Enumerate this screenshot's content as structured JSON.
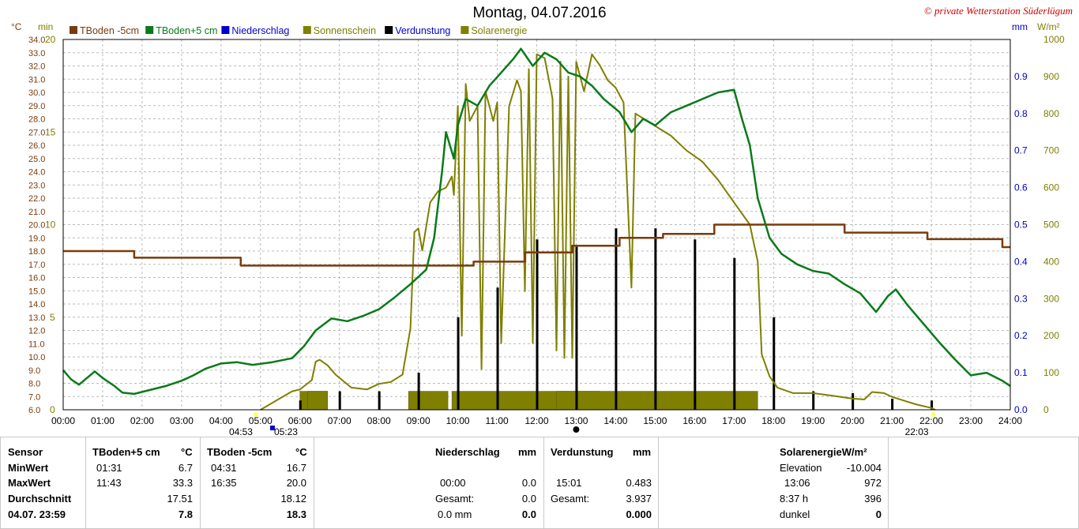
{
  "title": "Montag, 04.07.2016",
  "copyright": "© private Wetterstation Süderlügum",
  "legend": [
    {
      "label": "TBoden -5cm",
      "color": "#7a3b0c"
    },
    {
      "label": "TBoden+5 cm",
      "color": "#0a7a1a"
    },
    {
      "label": "Niederschlag",
      "color": "#0000cc"
    },
    {
      "label": "Sonnenschein",
      "color": "#7f7f00"
    },
    {
      "label": "Verdunstung",
      "color": "#000000"
    },
    {
      "label": "Solarenergie",
      "color": "#7f7f00"
    }
  ],
  "axis_units": {
    "temp": "°C",
    "min": "min",
    "mm": "mm",
    "wm2": "W/m²"
  },
  "axis_ticks": {
    "temp": [
      "6.0",
      "7.0",
      "8.0",
      "9.0",
      "10.0",
      "11.0",
      "12.0",
      "13.0",
      "14.0",
      "15.0",
      "16.0",
      "17.0",
      "18.0",
      "19.0",
      "20.0",
      "21.0",
      "22.0",
      "23.0",
      "24.0",
      "25.0",
      "26.0",
      "27.0",
      "28.0",
      "29.0",
      "30.0",
      "31.0",
      "32.0",
      "33.0",
      "34.0"
    ],
    "min": [
      "0",
      "5",
      "10",
      "15",
      "20"
    ],
    "mm": [
      "0.0",
      "0.1",
      "0.2",
      "0.3",
      "0.4",
      "0.5",
      "0.6",
      "0.7",
      "0.8",
      "0.9"
    ],
    "wm2": [
      "0",
      "100",
      "200",
      "300",
      "400",
      "500",
      "600",
      "700",
      "800",
      "900",
      "1000"
    ],
    "time": [
      "00:00",
      "01:00",
      "02:00",
      "03:00",
      "04:00",
      "05:00",
      "06:00",
      "07:00",
      "08:00",
      "09:00",
      "10:00",
      "11:00",
      "12:00",
      "13:00",
      "14:00",
      "15:00",
      "16:00",
      "17:00",
      "18:00",
      "19:00",
      "20:00",
      "21:00",
      "22:00",
      "23:00",
      "24:00"
    ]
  },
  "sun_events": {
    "dawn": "04:53",
    "sunrise": "05:23",
    "sunset": "22:03"
  },
  "colors": {
    "tboden_minus5": "#7a3b0c",
    "tboden_plus5": "#0a7a1a",
    "sun": "#7f7f00",
    "evap": "#000000",
    "grid": "#bbbbbb"
  },
  "chart_data": {
    "type": "line",
    "title": "Montag, 04.07.2016",
    "x_unit": "hour",
    "xlim": [
      0,
      24
    ],
    "ylim_temp": [
      6,
      34
    ],
    "ylim_sun_min": [
      0,
      20
    ],
    "ylim_mm": [
      0,
      1.0
    ],
    "ylim_wm2": [
      0,
      1000
    ],
    "grid": true,
    "legend_position": "top",
    "series": [
      {
        "name": "TBoden -5cm",
        "axis": "temp",
        "points": [
          [
            0,
            18.0
          ],
          [
            1.8,
            18.0
          ],
          [
            1.8,
            17.5
          ],
          [
            4.5,
            17.5
          ],
          [
            4.5,
            16.9
          ],
          [
            10.4,
            16.9
          ],
          [
            10.4,
            17.2
          ],
          [
            11.7,
            17.2
          ],
          [
            11.7,
            17.9
          ],
          [
            12.9,
            17.9
          ],
          [
            12.9,
            18.4
          ],
          [
            14.1,
            18.4
          ],
          [
            14.1,
            19.0
          ],
          [
            15.2,
            19.0
          ],
          [
            15.2,
            19.3
          ],
          [
            16.5,
            19.3
          ],
          [
            16.5,
            20.0
          ],
          [
            19.8,
            20.0
          ],
          [
            19.8,
            19.4
          ],
          [
            21.9,
            19.4
          ],
          [
            21.9,
            18.9
          ],
          [
            23.8,
            18.9
          ],
          [
            23.8,
            18.3
          ],
          [
            24,
            18.3
          ]
        ]
      },
      {
        "name": "TBoden+5 cm",
        "axis": "temp",
        "points": [
          [
            0,
            9.0
          ],
          [
            0.2,
            8.3
          ],
          [
            0.4,
            7.9
          ],
          [
            0.6,
            8.4
          ],
          [
            0.8,
            8.9
          ],
          [
            1.0,
            8.4
          ],
          [
            1.3,
            7.8
          ],
          [
            1.5,
            7.3
          ],
          [
            1.8,
            7.2
          ],
          [
            2.2,
            7.5
          ],
          [
            2.6,
            7.8
          ],
          [
            3.0,
            8.2
          ],
          [
            3.3,
            8.6
          ],
          [
            3.6,
            9.1
          ],
          [
            4.0,
            9.5
          ],
          [
            4.4,
            9.6
          ],
          [
            4.8,
            9.4
          ],
          [
            5.3,
            9.6
          ],
          [
            5.8,
            9.9
          ],
          [
            6.1,
            10.8
          ],
          [
            6.4,
            12.0
          ],
          [
            6.8,
            12.9
          ],
          [
            7.2,
            12.7
          ],
          [
            7.6,
            13.1
          ],
          [
            8.0,
            13.6
          ],
          [
            8.4,
            14.5
          ],
          [
            8.8,
            15.5
          ],
          [
            9.2,
            16.6
          ],
          [
            9.4,
            19.0
          ],
          [
            9.6,
            24.0
          ],
          [
            9.7,
            27.0
          ],
          [
            9.9,
            25.0
          ],
          [
            10.0,
            27.5
          ],
          [
            10.2,
            29.5
          ],
          [
            10.5,
            29.0
          ],
          [
            10.8,
            30.5
          ],
          [
            11.1,
            31.5
          ],
          [
            11.4,
            32.5
          ],
          [
            11.6,
            33.3
          ],
          [
            11.9,
            32.0
          ],
          [
            12.2,
            33.0
          ],
          [
            12.5,
            32.5
          ],
          [
            12.8,
            31.5
          ],
          [
            13.1,
            31.2
          ],
          [
            13.4,
            30.5
          ],
          [
            13.7,
            29.5
          ],
          [
            14.1,
            28.5
          ],
          [
            14.4,
            27.0
          ],
          [
            14.7,
            28.0
          ],
          [
            15.0,
            27.5
          ],
          [
            15.4,
            28.5
          ],
          [
            15.8,
            29.0
          ],
          [
            16.2,
            29.5
          ],
          [
            16.6,
            30.0
          ],
          [
            17.0,
            30.2
          ],
          [
            17.2,
            28.0
          ],
          [
            17.4,
            26.0
          ],
          [
            17.6,
            22.0
          ],
          [
            17.9,
            19.0
          ],
          [
            18.2,
            17.8
          ],
          [
            18.6,
            17.0
          ],
          [
            19.0,
            16.5
          ],
          [
            19.4,
            16.3
          ],
          [
            19.8,
            15.5
          ],
          [
            20.2,
            14.8
          ],
          [
            20.6,
            13.4
          ],
          [
            20.9,
            14.6
          ],
          [
            21.1,
            15.1
          ],
          [
            21.4,
            13.9
          ],
          [
            21.8,
            12.5
          ],
          [
            22.2,
            11.1
          ],
          [
            22.6,
            9.8
          ],
          [
            23.0,
            8.6
          ],
          [
            23.4,
            8.8
          ],
          [
            23.8,
            8.2
          ],
          [
            24,
            7.8
          ]
        ]
      },
      {
        "name": "Solarenergie",
        "axis": "wm2",
        "points": [
          [
            5.0,
            0
          ],
          [
            5.4,
            25
          ],
          [
            5.8,
            50
          ],
          [
            6.0,
            55
          ],
          [
            6.3,
            80
          ],
          [
            6.4,
            130
          ],
          [
            6.5,
            135
          ],
          [
            6.7,
            120
          ],
          [
            6.9,
            95
          ],
          [
            7.3,
            60
          ],
          [
            7.7,
            55
          ],
          [
            8.0,
            70
          ],
          [
            8.3,
            75
          ],
          [
            8.6,
            95
          ],
          [
            8.8,
            220
          ],
          [
            8.9,
            480
          ],
          [
            9.0,
            490
          ],
          [
            9.1,
            430
          ],
          [
            9.3,
            560
          ],
          [
            9.5,
            590
          ],
          [
            9.7,
            600
          ],
          [
            9.85,
            630
          ],
          [
            9.9,
            580
          ],
          [
            10.0,
            820
          ],
          [
            10.1,
            200
          ],
          [
            10.2,
            880
          ],
          [
            10.3,
            780
          ],
          [
            10.5,
            820
          ],
          [
            10.6,
            110
          ],
          [
            10.7,
            860
          ],
          [
            10.9,
            780
          ],
          [
            11.0,
            830
          ],
          [
            11.1,
            180
          ],
          [
            11.3,
            820
          ],
          [
            11.5,
            890
          ],
          [
            11.6,
            860
          ],
          [
            11.7,
            320
          ],
          [
            11.8,
            920
          ],
          [
            11.9,
            180
          ],
          [
            12.0,
            960
          ],
          [
            12.2,
            950
          ],
          [
            12.4,
            840
          ],
          [
            12.5,
            160
          ],
          [
            12.6,
            940
          ],
          [
            12.7,
            140
          ],
          [
            12.8,
            900
          ],
          [
            12.9,
            140
          ],
          [
            13.0,
            940
          ],
          [
            13.2,
            860
          ],
          [
            13.4,
            960
          ],
          [
            13.6,
            930
          ],
          [
            13.8,
            890
          ],
          [
            14.0,
            870
          ],
          [
            14.2,
            830
          ],
          [
            14.4,
            330
          ],
          [
            14.5,
            800
          ],
          [
            14.8,
            780
          ],
          [
            15.1,
            760
          ],
          [
            15.4,
            740
          ],
          [
            15.8,
            700
          ],
          [
            16.2,
            670
          ],
          [
            16.6,
            620
          ],
          [
            17.0,
            560
          ],
          [
            17.4,
            500
          ],
          [
            17.6,
            400
          ],
          [
            17.7,
            150
          ],
          [
            17.9,
            90
          ],
          [
            18.1,
            60
          ],
          [
            18.5,
            45
          ],
          [
            19.0,
            45
          ],
          [
            19.5,
            38
          ],
          [
            20.0,
            30
          ],
          [
            20.3,
            28
          ],
          [
            20.5,
            48
          ],
          [
            20.8,
            45
          ],
          [
            21.0,
            35
          ],
          [
            21.3,
            25
          ],
          [
            21.6,
            15
          ],
          [
            22.0,
            5
          ],
          [
            22.1,
            0
          ]
        ]
      },
      {
        "name": "Sonnenschein",
        "axis": "min",
        "bars": [
          [
            6.0,
            0.7,
            1.0
          ],
          [
            6.2,
            0.5,
            1.0
          ],
          [
            8.75,
            1.0,
            1.0
          ],
          [
            9.85,
            3.75,
            1.0
          ],
          [
            12.5,
            5.1,
            1.0
          ]
        ]
      },
      {
        "name": "Verdunstung",
        "axis": "mm",
        "bars": [
          [
            6.0,
            0.025
          ],
          [
            7.0,
            0.05
          ],
          [
            8.0,
            0.05
          ],
          [
            9.0,
            0.1
          ],
          [
            10.0,
            0.25
          ],
          [
            11.0,
            0.33
          ],
          [
            12.0,
            0.46
          ],
          [
            13.0,
            0.44
          ],
          [
            14.0,
            0.49
          ],
          [
            15.0,
            0.49
          ],
          [
            16.0,
            0.46
          ],
          [
            17.0,
            0.41
          ],
          [
            18.0,
            0.25
          ],
          [
            19.0,
            0.05
          ],
          [
            20.0,
            0.045
          ],
          [
            21.0,
            0.03
          ],
          [
            22.0,
            0.025
          ]
        ]
      }
    ]
  },
  "table": {
    "headers": {
      "sensor": "Sensor",
      "tboden_plus5": "TBoden+5 cm",
      "tboden_plus5_unit": "°C",
      "tboden_minus5": "TBoden -5cm",
      "tboden_minus5_unit": "°C",
      "niederschlag": "Niederschlag",
      "niederschlag_unit": "mm",
      "verdunstung": "Verdunstung",
      "verdunstung_unit": "mm",
      "solar": "SolarenergieW/m²"
    },
    "row_labels": {
      "min": "MinWert",
      "max": "MaxWert",
      "avg": "Durchschnitt",
      "date": "04.07. 23:59"
    },
    "tboden_plus5": {
      "min_time": "01:31",
      "min_val": "6.7",
      "max_time": "11:43",
      "max_val": "33.3",
      "avg": "17.51",
      "current": "7.8"
    },
    "tboden_minus5": {
      "min_time": "04:31",
      "min_val": "16.7",
      "max_time": "16:35",
      "max_val": "20.0",
      "avg": "18.12",
      "current": "18.3"
    },
    "niederschlag": {
      "time": "00:00",
      "time_val": "0.0",
      "total_label": "Gesamt:",
      "total_val": "0.0",
      "mm_label": "0.0 mm",
      "current": "0.0"
    },
    "verdunstung": {
      "time": "15:01",
      "time_val": "0.483",
      "total_label": "Gesamt:",
      "total_val": "3.937",
      "current": "0.000"
    },
    "solar": {
      "elev_label": "Elevation",
      "elev_val": "-10.004",
      "max_time": "13:06",
      "max_val": "972",
      "dur_label": "8:37 h",
      "dur_val": "396",
      "dark_label": "dunkel",
      "current": "0"
    }
  }
}
